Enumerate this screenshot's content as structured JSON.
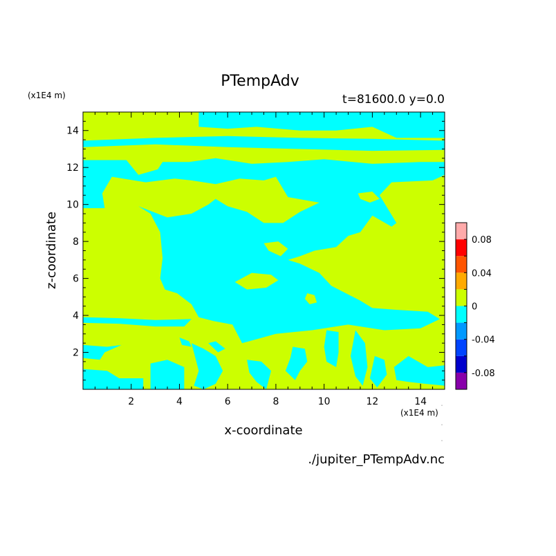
{
  "chart_data": {
    "type": "heatmap",
    "title": "PTempAdv",
    "subtitle": "t=81600.0 y=0.0",
    "xlabel": "x-coordinate",
    "ylabel": "z-coordinate",
    "x_unit": "(x1E4 m)",
    "y_unit": "(x1E4 m)",
    "xlim": [
      0,
      15
    ],
    "ylim": [
      0,
      15
    ],
    "x_ticks": [
      2,
      4,
      6,
      8,
      10,
      12,
      14
    ],
    "y_ticks": [
      2,
      4,
      6,
      8,
      10,
      12,
      14
    ],
    "source_file": "./jupiter_PTempAdv.nc",
    "colorbar": {
      "range": [
        -0.1,
        0.1
      ],
      "levels": [
        -0.1,
        -0.08,
        -0.06,
        -0.04,
        -0.02,
        0,
        0.02,
        0.04,
        0.06,
        0.08,
        0.1
      ],
      "colors": [
        "#8800aa",
        "#0000cc",
        "#0044ff",
        "#0099ff",
        "#00ffff",
        "#ccff00",
        "#ffaa00",
        "#ff5500",
        "#ff0000",
        "#ffaaaa"
      ],
      "tick_labels": [
        "0.08",
        "0.04",
        "0",
        "-0.04",
        "-0.08"
      ],
      "tick_values": [
        0.08,
        0.04,
        0,
        -0.04,
        -0.08
      ]
    },
    "colors": {
      "positive_fill": "#ccff00",
      "negative_fill": "#00ffff"
    },
    "negative_regions": [
      [
        [
          4.8,
          15
        ],
        [
          15,
          15
        ],
        [
          15,
          13.6
        ],
        [
          13.0,
          13.6
        ],
        [
          12.0,
          14.2
        ],
        [
          10.5,
          14.0
        ],
        [
          9.0,
          14.0
        ],
        [
          7.2,
          14.2
        ],
        [
          6.0,
          14.1
        ],
        [
          4.8,
          14.2
        ]
      ],
      [
        [
          0,
          13.1
        ],
        [
          3,
          13.25
        ],
        [
          6,
          13.1
        ],
        [
          9,
          13.0
        ],
        [
          12,
          12.9
        ],
        [
          15,
          12.95
        ],
        [
          15,
          13.45
        ],
        [
          12,
          13.55
        ],
        [
          9,
          13.6
        ],
        [
          6,
          13.7
        ],
        [
          3,
          13.6
        ],
        [
          0,
          13.45
        ]
      ],
      [
        [
          0,
          12.4
        ],
        [
          1.8,
          12.4
        ],
        [
          2.3,
          11.6
        ],
        [
          3.1,
          11.9
        ],
        [
          3.3,
          12.3
        ],
        [
          4.4,
          12.3
        ],
        [
          5.5,
          12.5
        ],
        [
          7.0,
          12.2
        ],
        [
          8.5,
          12.3
        ],
        [
          10.0,
          12.45
        ],
        [
          12.0,
          12.2
        ],
        [
          14.0,
          12.3
        ],
        [
          15,
          12.3
        ],
        [
          15,
          11.6
        ],
        [
          14.5,
          11.3
        ],
        [
          12.8,
          11.2
        ],
        [
          12.3,
          10.5
        ],
        [
          13.0,
          9.0
        ],
        [
          12.8,
          8.8
        ],
        [
          12.0,
          9.4
        ],
        [
          11.5,
          8.5
        ],
        [
          11.0,
          8.3
        ],
        [
          10.5,
          7.7
        ],
        [
          9.6,
          7.5
        ],
        [
          9.0,
          7.2
        ],
        [
          8.5,
          7.0
        ],
        [
          9.0,
          6.8
        ],
        [
          9.8,
          6.3
        ],
        [
          10.3,
          5.6
        ],
        [
          11.5,
          4.8
        ],
        [
          12.0,
          4.4
        ],
        [
          13.0,
          4.3
        ],
        [
          14.3,
          4.2
        ],
        [
          14.8,
          3.8
        ],
        [
          14.0,
          3.3
        ],
        [
          12.5,
          3.2
        ],
        [
          11.0,
          3.5
        ],
        [
          9.5,
          3.2
        ],
        [
          8.0,
          3.0
        ],
        [
          6.6,
          2.5
        ],
        [
          6.2,
          3.5
        ],
        [
          5.4,
          3.7
        ],
        [
          4.8,
          3.9
        ],
        [
          4.5,
          4.6
        ],
        [
          3.9,
          5.2
        ],
        [
          3.4,
          5.4
        ],
        [
          3.2,
          6.0
        ],
        [
          3.3,
          7.1
        ],
        [
          3.2,
          8.5
        ],
        [
          2.8,
          9.5
        ],
        [
          2.3,
          9.9
        ],
        [
          3.5,
          9.3
        ],
        [
          4.5,
          9.5
        ],
        [
          5.2,
          10.0
        ],
        [
          5.5,
          10.3
        ],
        [
          6.0,
          9.9
        ],
        [
          6.8,
          9.6
        ],
        [
          7.5,
          9.0
        ],
        [
          8.3,
          9.0
        ],
        [
          9.0,
          9.6
        ],
        [
          9.8,
          10.1
        ],
        [
          8.5,
          10.4
        ],
        [
          8.0,
          11.5
        ],
        [
          7.5,
          11.3
        ],
        [
          6.5,
          11.4
        ],
        [
          5.5,
          11.1
        ],
        [
          4.5,
          11.3
        ],
        [
          3.8,
          11.4
        ],
        [
          2.6,
          11.2
        ],
        [
          1.2,
          11.5
        ],
        [
          0.8,
          10.6
        ],
        [
          0.9,
          9.8
        ],
        [
          0,
          9.8
        ]
      ],
      [
        [
          0,
          3.6
        ],
        [
          1.5,
          3.55
        ],
        [
          3,
          3.4
        ],
        [
          4.2,
          3.4
        ],
        [
          4.5,
          3.8
        ],
        [
          3,
          3.75
        ],
        [
          1.5,
          3.85
        ],
        [
          0,
          3.9
        ]
      ],
      [
        [
          0,
          2.4
        ],
        [
          1.0,
          2.3
        ],
        [
          1.6,
          2.4
        ],
        [
          0.9,
          2.0
        ],
        [
          0.7,
          1.6
        ],
        [
          0,
          1.7
        ]
      ],
      [
        [
          0,
          1.1
        ],
        [
          1.0,
          1.0
        ],
        [
          1.5,
          0.6
        ],
        [
          2.5,
          0.6
        ],
        [
          2.5,
          0
        ],
        [
          0,
          0
        ]
      ],
      [
        [
          2.8,
          1.4
        ],
        [
          3.5,
          1.6
        ],
        [
          4.2,
          1.2
        ],
        [
          4.2,
          0
        ],
        [
          2.8,
          0
        ],
        [
          2.8,
          0.8
        ]
      ],
      [
        [
          4.5,
          2.5
        ],
        [
          5.0,
          2.2
        ],
        [
          5.5,
          1.8
        ],
        [
          5.8,
          1.0
        ],
        [
          5.5,
          0.3
        ],
        [
          5.0,
          0
        ],
        [
          4.6,
          0.2
        ],
        [
          4.8,
          1.0
        ]
      ],
      [
        [
          6.8,
          1.6
        ],
        [
          7.4,
          1.5
        ],
        [
          7.8,
          1.0
        ],
        [
          7.6,
          0
        ],
        [
          7.2,
          0.4
        ],
        [
          6.9,
          0.9
        ]
      ],
      [
        [
          8.7,
          2.3
        ],
        [
          9.2,
          2.2
        ],
        [
          9.3,
          1.5
        ],
        [
          9.0,
          1.0
        ],
        [
          8.8,
          0.5
        ],
        [
          8.4,
          1.0
        ],
        [
          8.6,
          1.7
        ]
      ],
      [
        [
          10.1,
          3.2
        ],
        [
          10.6,
          3.1
        ],
        [
          10.6,
          2.0
        ],
        [
          10.5,
          1.2
        ],
        [
          10.1,
          1.5
        ],
        [
          10.0,
          2.3
        ]
      ],
      [
        [
          11.3,
          3.2
        ],
        [
          11.7,
          2.5
        ],
        [
          11.8,
          1.2
        ],
        [
          11.6,
          0.2
        ],
        [
          11.3,
          0.7
        ],
        [
          11.1,
          1.8
        ]
      ],
      [
        [
          12.1,
          1.8
        ],
        [
          12.5,
          1.6
        ],
        [
          12.6,
          0.8
        ],
        [
          12.2,
          0.1
        ],
        [
          11.9,
          0.6
        ]
      ],
      [
        [
          12.9,
          1.2
        ],
        [
          13.5,
          1.8
        ],
        [
          14.3,
          1.2
        ],
        [
          15,
          1.3
        ],
        [
          15,
          0.2
        ],
        [
          14.2,
          0.3
        ],
        [
          13.5,
          0.4
        ],
        [
          13.0,
          0.5
        ]
      ],
      [
        [
          5.2,
          2.5
        ],
        [
          5.6,
          2.0
        ],
        [
          5.9,
          2.2
        ],
        [
          5.5,
          2.6
        ]
      ],
      [
        [
          4.0,
          2.8
        ],
        [
          4.4,
          2.6
        ],
        [
          4.5,
          2.3
        ],
        [
          4.1,
          2.4
        ]
      ]
    ],
    "positive_regions": [
      [
        [
          6.3,
          5.8
        ],
        [
          7.0,
          6.3
        ],
        [
          7.8,
          6.2
        ],
        [
          8.1,
          5.9
        ],
        [
          7.6,
          5.5
        ],
        [
          6.8,
          5.4
        ]
      ],
      [
        [
          7.5,
          7.9
        ],
        [
          8.1,
          8.0
        ],
        [
          8.5,
          7.6
        ],
        [
          8.2,
          7.2
        ],
        [
          7.7,
          7.5
        ]
      ],
      [
        [
          9.3,
          5.2
        ],
        [
          9.6,
          5.1
        ],
        [
          9.7,
          4.7
        ],
        [
          9.4,
          4.6
        ],
        [
          9.2,
          4.9
        ]
      ],
      [
        [
          11.4,
          10.6
        ],
        [
          12.0,
          10.7
        ],
        [
          12.3,
          10.3
        ],
        [
          11.9,
          10.1
        ],
        [
          11.5,
          10.3
        ]
      ]
    ]
  }
}
